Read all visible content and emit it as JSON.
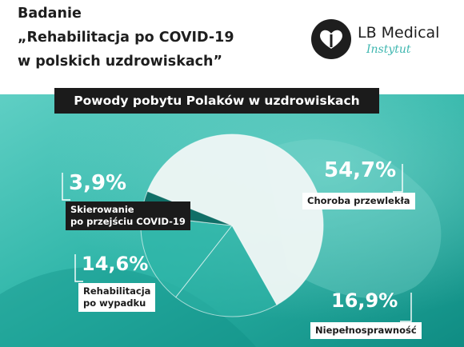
{
  "header": {
    "title_lines": [
      "Badanie",
      "„Rehabilitacja po COVID-19",
      "w polskich uzdrowiskach”"
    ]
  },
  "logo": {
    "name": "LB Medical",
    "sub": "Instytut"
  },
  "colors": {
    "teal_light": "#4ec9bd",
    "teal": "#1fa99d",
    "teal_dark": "#0f7f78",
    "dark": "#1b1b1b",
    "pie_white": "#eef6f5",
    "pie_green": "#2fb5a8",
    "pie_deep": "#0e6a63"
  },
  "chart_data": {
    "type": "pie",
    "title": "Powody pobytu Polaków w uzdrowiskach",
    "slices": [
      {
        "label": "Choroba przewlekła",
        "value": 54.7,
        "display": "54,7%"
      },
      {
        "label": "Niepełnosprawność",
        "value": 16.9,
        "display": "16,9%"
      },
      {
        "label": "Rehabilitacja po wypadku",
        "value": 14.6,
        "display": "14,6%"
      },
      {
        "label": "Skierowanie po przejściu COVID-19",
        "value": 3.9,
        "display": "3,9%"
      }
    ],
    "label_lines": {
      "covid": [
        "Skierowanie",
        "po przejściu COVID-19"
      ],
      "wypadek": [
        "Rehabilitacja",
        "po wypadku"
      ],
      "przewlekla": [
        "Choroba przewlekła"
      ],
      "niepelno": [
        "Niepełnosprawność"
      ]
    }
  }
}
